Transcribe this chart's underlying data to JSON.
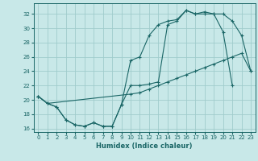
{
  "xlabel": "Humidex (Indice chaleur)",
  "bg_color": "#c8e8e8",
  "grid_color": "#a0cccc",
  "line_color": "#1a6666",
  "xlim": [
    -0.5,
    23.5
  ],
  "ylim": [
    15.5,
    33.5
  ],
  "xticks": [
    0,
    1,
    2,
    3,
    4,
    5,
    6,
    7,
    8,
    9,
    10,
    11,
    12,
    13,
    14,
    15,
    16,
    17,
    18,
    19,
    20,
    21,
    22,
    23
  ],
  "yticks": [
    16,
    18,
    20,
    22,
    24,
    26,
    28,
    30,
    32
  ],
  "line1_x": [
    0,
    1,
    2,
    3,
    4,
    5,
    6,
    7,
    8,
    9,
    10,
    11,
    12,
    13,
    14,
    15,
    16,
    17,
    18,
    19,
    20,
    21,
    22,
    23
  ],
  "line1_y": [
    20.5,
    19.5,
    19.0,
    17.2,
    16.5,
    16.3,
    16.8,
    16.3,
    16.3,
    19.3,
    22.0,
    22.0,
    22.2,
    22.5,
    30.5,
    31.0,
    32.5,
    32.0,
    32.0,
    32.0,
    32.0,
    31.0,
    29.0,
    24.0
  ],
  "line2_x": [
    0,
    1,
    2,
    3,
    4,
    5,
    6,
    7,
    8,
    9,
    10,
    11,
    12,
    13,
    14,
    15,
    16,
    17,
    18,
    19,
    20,
    21
  ],
  "line2_y": [
    20.5,
    19.5,
    19.0,
    17.2,
    16.5,
    16.3,
    16.8,
    16.3,
    16.3,
    19.3,
    25.5,
    26.0,
    29.0,
    30.5,
    31.0,
    31.2,
    32.5,
    32.0,
    32.3,
    32.0,
    29.5,
    22.0
  ],
  "line3_x": [
    0,
    1,
    10,
    11,
    12,
    13,
    14,
    15,
    16,
    17,
    18,
    19,
    20,
    21,
    22,
    23
  ],
  "line3_y": [
    20.5,
    19.5,
    20.8,
    21.0,
    21.5,
    22.0,
    22.5,
    23.0,
    23.5,
    24.0,
    24.5,
    25.0,
    25.5,
    26.0,
    26.5,
    24.0
  ]
}
